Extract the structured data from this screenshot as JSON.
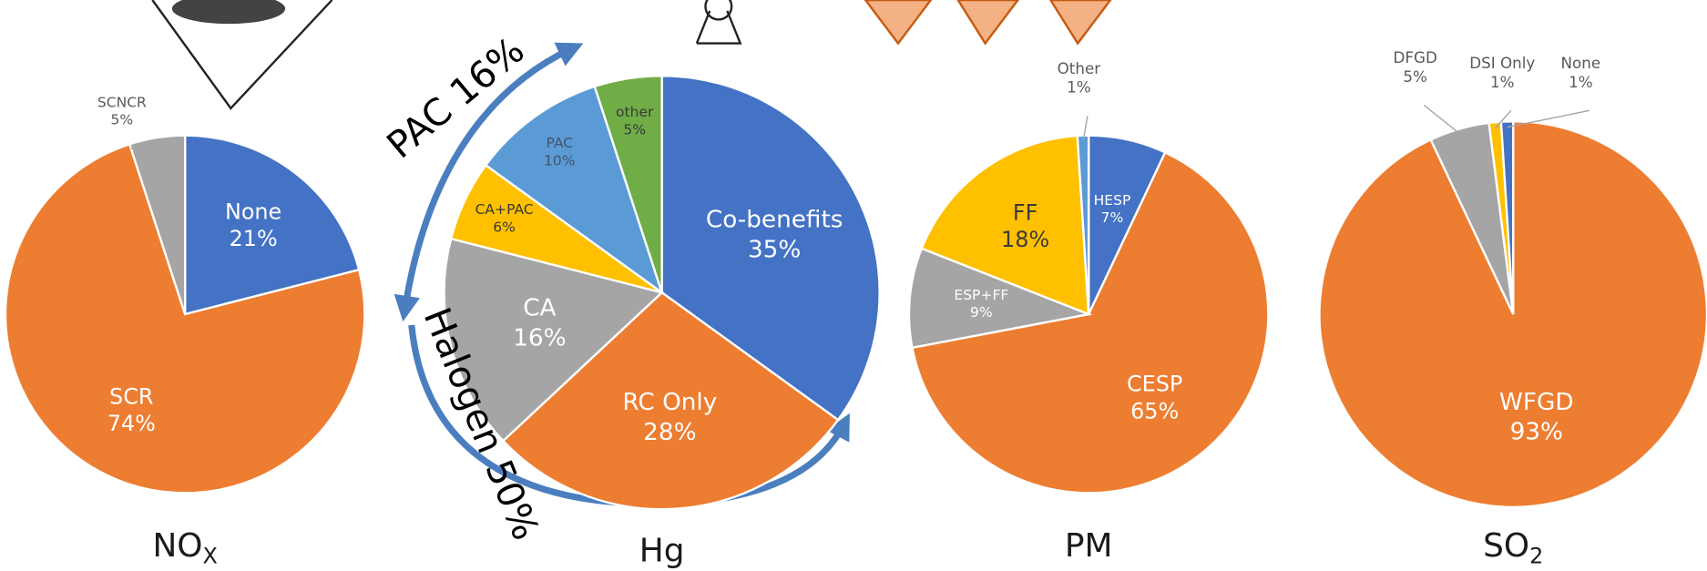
{
  "chart_data": [
    {
      "type": "pie",
      "title": "NO",
      "title_subscript": "X",
      "categories": [
        "None",
        "SCR",
        "SCNCR"
      ],
      "values": [
        21,
        74,
        5
      ],
      "value_labels": [
        "21%",
        "74%",
        "5%"
      ],
      "colors": [
        "#4472c4",
        "#ed7d31",
        "#a5a5a5"
      ]
    },
    {
      "type": "pie",
      "title": "Hg",
      "categories": [
        "Co-benefits",
        "RC Only",
        "CA",
        "CA+PAC",
        "PAC",
        "other"
      ],
      "values": [
        35,
        28,
        16,
        6,
        10,
        5
      ],
      "value_labels": [
        "35%",
        "28%",
        "16%",
        "6%",
        "10%",
        "5%"
      ],
      "colors": [
        "#4472c4",
        "#ed7d31",
        "#a5a5a5",
        "#ffc000",
        "#5b9bd5",
        "#70ad47"
      ],
      "annotations": [
        "PAC 16%",
        "Halogen 50%"
      ]
    },
    {
      "type": "pie",
      "title": "PM",
      "categories": [
        "HESP",
        "CESP",
        "ESP+FF",
        "FF",
        "Other"
      ],
      "values": [
        7,
        65,
        9,
        18,
        1
      ],
      "value_labels": [
        "7%",
        "65%",
        "9%",
        "18%",
        "1%"
      ],
      "colors": [
        "#4472c4",
        "#ed7d31",
        "#a5a5a5",
        "#ffc000",
        "#5b9bd5"
      ]
    },
    {
      "type": "pie",
      "title": "SO",
      "title_subscript": "2",
      "categories": [
        "WFGD",
        "DFGD",
        "DSI Only",
        "None"
      ],
      "values": [
        93,
        5,
        1,
        1
      ],
      "value_labels": [
        "93%",
        "5%",
        "1%",
        "1%"
      ],
      "colors": [
        "#ed7d31",
        "#a5a5a5",
        "#ffc000",
        "#4472c4"
      ]
    }
  ]
}
